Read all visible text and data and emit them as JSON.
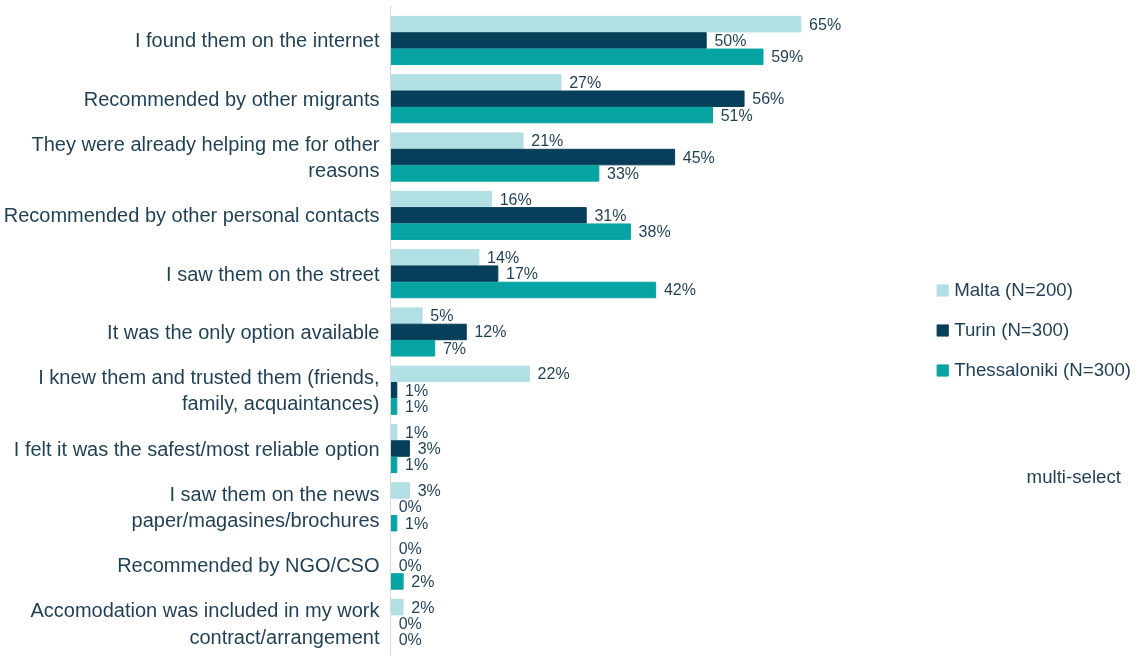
{
  "chart_data": {
    "type": "bar",
    "orientation": "horizontal",
    "legend": "right",
    "grid": false,
    "categories": [
      "I found them on the internet",
      "Recommended by other migrants",
      "They were already helping me for other\nreasons",
      "Recommended by other personal contacts",
      "I saw them on the street",
      "It was the only option available",
      "I knew them and trusted them (friends,\nfamily, acquaintances)",
      "I felt it was the safest/most reliable option",
      "I saw them on the news\npaper/magasines/brochures",
      "Recommended by NGO/CSO",
      "Accomodation was included in my work\ncontract/arrangement"
    ],
    "series": [
      {
        "name": "Malta (N=200)",
        "color": "#b2dfe3",
        "values": [
          65,
          27,
          21,
          16,
          14,
          5,
          22,
          1,
          3,
          0,
          2
        ],
        "value_labels": [
          "65%",
          "27%",
          "21%",
          "16%",
          "14%",
          "5%",
          "22%",
          "1%",
          "3%",
          "0%",
          "2%"
        ]
      },
      {
        "name": "Turin (N=300)",
        "color": "#073f5a",
        "values": [
          50,
          56,
          45,
          31,
          17,
          12,
          1,
          3,
          0,
          0,
          0
        ],
        "value_labels": [
          "50%",
          "56%",
          "45%",
          "31%",
          "17%",
          "12%",
          "1%",
          "3%",
          "0%",
          "0%",
          "0%"
        ]
      },
      {
        "name": "Thessaloniki (N=300)",
        "color": "#08a3a3",
        "values": [
          59,
          51,
          33,
          38,
          42,
          7,
          1,
          1,
          1,
          2,
          0
        ],
        "value_labels": [
          "59%",
          "51%",
          "33%",
          "38%",
          "42%",
          "7%",
          "1%",
          "1%",
          "1%",
          "2%",
          "0%"
        ]
      }
    ],
    "annotations": [
      "multi-select"
    ]
  }
}
